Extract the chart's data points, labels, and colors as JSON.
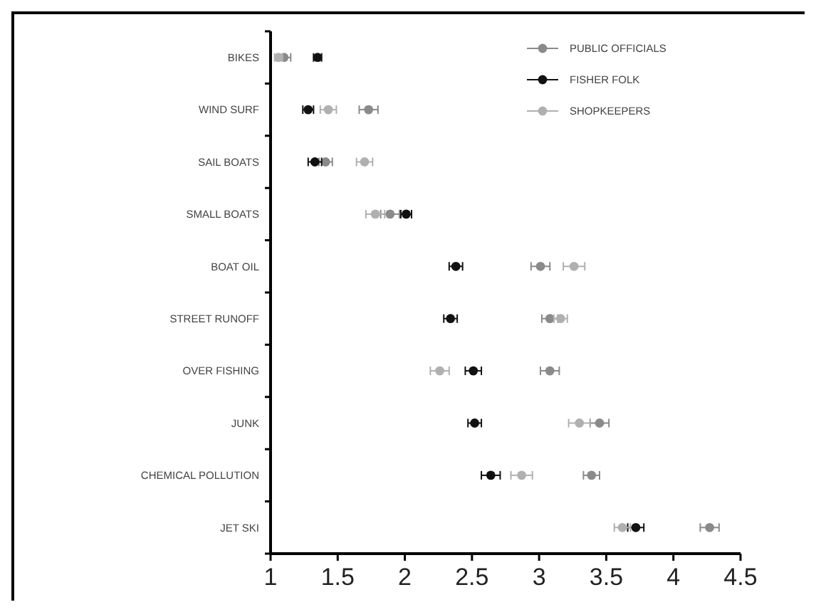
{
  "chart_data": {
    "type": "scatter",
    "orientation": "horizontal",
    "categories": [
      "BIKES",
      "WIND SURF",
      "SAIL BOATS",
      "SMALL BOATS",
      "BOAT OIL",
      "STREET RUNOFF",
      "OVER FISHING",
      "JUNK",
      "CHEMICAL POLLUTION",
      "JET SKI"
    ],
    "series": [
      {
        "name": "PUBLIC OFFICIALS",
        "color": "#8a8a8a",
        "values": [
          1.1,
          1.73,
          1.41,
          1.89,
          3.01,
          3.08,
          3.08,
          3.45,
          3.39,
          4.27
        ],
        "errors": [
          0.05,
          0.07,
          0.05,
          0.07,
          0.07,
          0.06,
          0.07,
          0.07,
          0.06,
          0.07
        ]
      },
      {
        "name": "FISHER FOLK",
        "color": "#111111",
        "values": [
          1.35,
          1.28,
          1.33,
          2.01,
          2.38,
          2.34,
          2.51,
          2.52,
          2.64,
          3.72
        ],
        "errors": [
          0.03,
          0.04,
          0.05,
          0.04,
          0.05,
          0.05,
          0.06,
          0.05,
          0.07,
          0.06
        ]
      },
      {
        "name": "SHOPKEEPERS",
        "color": "#b0b0b0",
        "values": [
          1.06,
          1.43,
          1.7,
          1.78,
          3.26,
          3.16,
          2.26,
          3.3,
          2.87,
          3.62
        ],
        "errors": [
          0.03,
          0.06,
          0.06,
          0.07,
          0.08,
          0.05,
          0.07,
          0.08,
          0.08,
          0.06
        ]
      }
    ],
    "xlim": [
      1,
      4.5
    ],
    "xticks": [
      1,
      1.5,
      2,
      2.5,
      3,
      3.5,
      4,
      4.5
    ],
    "marker": "circle",
    "legend": "top right"
  }
}
